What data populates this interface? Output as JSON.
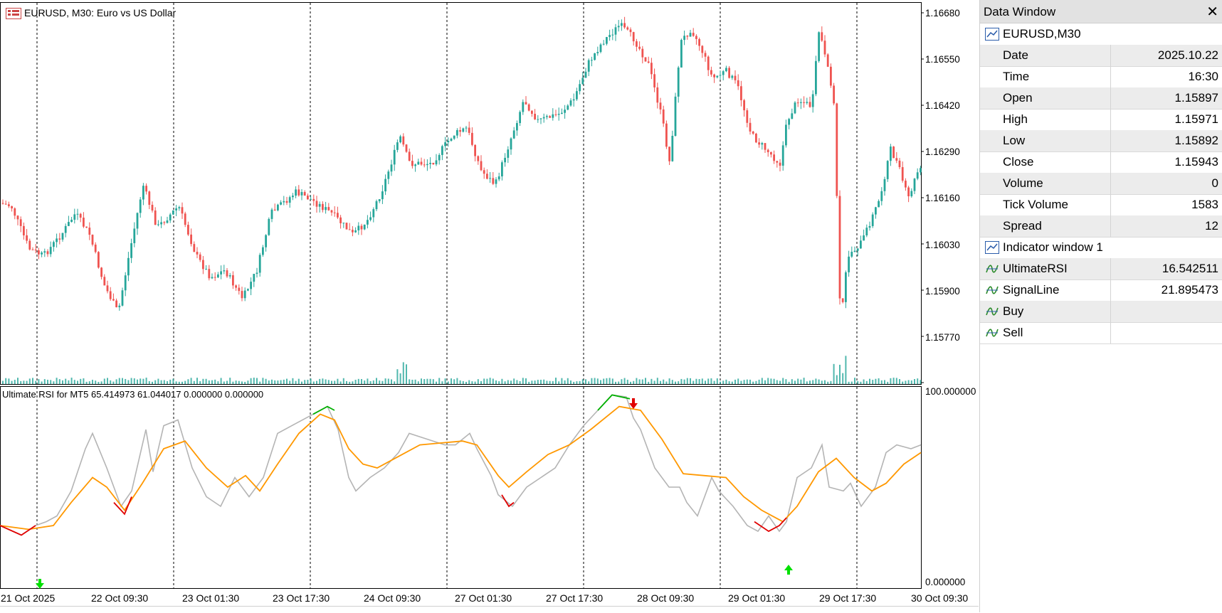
{
  "chart": {
    "title": "EURUSD, M30:  Euro vs US Dollar",
    "indicator_title": "Ultimate RSI for MT5 65.414973 61.044017 0.000000 0.000000",
    "price_axis": [
      "1.16680",
      "1.16550",
      "1.16420",
      "1.16290",
      "1.16160",
      "1.16030",
      "1.15900",
      "1.15770"
    ],
    "indicator_axis": [
      "100.000000",
      "0.000000"
    ],
    "time_axis": [
      "21 Oct 2025",
      "22 Oct 09:30",
      "23 Oct 01:30",
      "23 Oct 17:30",
      "24 Oct 09:30",
      "27 Oct 01:30",
      "27 Oct 17:30",
      "28 Oct 09:30",
      "29 Oct 01:30",
      "29 Oct 17:30",
      "30 Oct 09:30"
    ],
    "colors": {
      "bull": "#26a69a",
      "bear": "#ef5350",
      "rsi": "#b4b4b4",
      "signal": "#ff9800",
      "oversold": "#e00000",
      "overbought": "#00b000",
      "buy_arrow": "#00e000",
      "sell_arrow": "#e00000"
    },
    "symbol_icon": "price-chart-icon"
  },
  "data_window": {
    "title": "Data Window",
    "close_icon": "close-icon",
    "symbol": "EURUSD,M30",
    "rows": [
      {
        "label": "Date",
        "value": "2025.10.22"
      },
      {
        "label": "Time",
        "value": "16:30"
      },
      {
        "label": "Open",
        "value": "1.15897"
      },
      {
        "label": "High",
        "value": "1.15971"
      },
      {
        "label": "Low",
        "value": "1.15892"
      },
      {
        "label": "Close",
        "value": "1.15943"
      },
      {
        "label": "Volume",
        "value": "0"
      },
      {
        "label": "Tick Volume",
        "value": "1583"
      },
      {
        "label": "Spread",
        "value": "12"
      }
    ],
    "indicator_window": "Indicator window 1",
    "indicator_rows": [
      {
        "label": "UltimateRSI",
        "value": "16.542511"
      },
      {
        "label": "SignalLine",
        "value": "21.895473"
      },
      {
        "label": "Buy",
        "value": ""
      },
      {
        "label": "Sell",
        "value": ""
      }
    ]
  }
}
